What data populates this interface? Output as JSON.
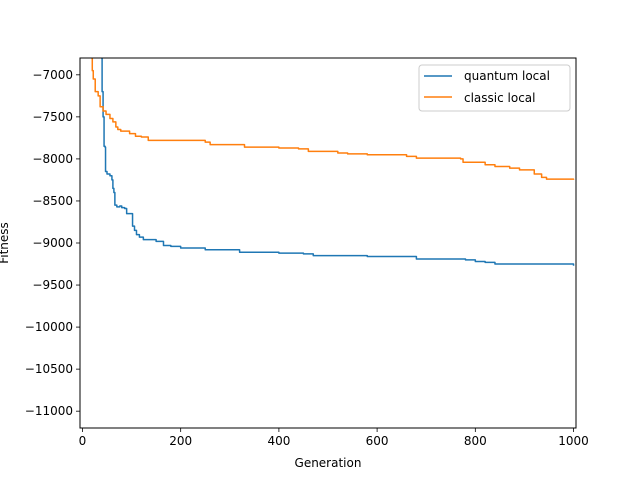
{
  "chart_data": {
    "type": "line",
    "title": "",
    "xlabel": "Generation",
    "ylabel": "Fitness",
    "xlim": [
      -5,
      1005
    ],
    "ylim": [
      -11200,
      -6800
    ],
    "xticks": [
      0,
      200,
      400,
      600,
      800,
      1000
    ],
    "yticks": [
      -7000,
      -7500,
      -8000,
      -8500,
      -9000,
      -9500,
      -10000,
      -10500,
      -11000
    ],
    "xtick_labels": [
      "0",
      "200",
      "400",
      "600",
      "800",
      "1000"
    ],
    "ytick_labels": [
      "−7000",
      "−7500",
      "−8000",
      "−8500",
      "−9000",
      "−9500",
      "−10000",
      "−10500",
      "−11000"
    ],
    "grid": false,
    "legend_position": "top-right",
    "series": [
      {
        "name": "quantum local",
        "color": "#1f77b4",
        "points": [
          [
            38,
            -6800
          ],
          [
            40,
            -7200
          ],
          [
            42,
            -7500
          ],
          [
            44,
            -7850
          ],
          [
            46,
            -7860
          ],
          [
            47,
            -8150
          ],
          [
            50,
            -8180
          ],
          [
            56,
            -8200
          ],
          [
            60,
            -8250
          ],
          [
            62,
            -8350
          ],
          [
            64,
            -8400
          ],
          [
            66,
            -8550
          ],
          [
            70,
            -8570
          ],
          [
            76,
            -8560
          ],
          [
            80,
            -8580
          ],
          [
            86,
            -8590
          ],
          [
            90,
            -8650
          ],
          [
            100,
            -8650
          ],
          [
            102,
            -8800
          ],
          [
            106,
            -8850
          ],
          [
            110,
            -8900
          ],
          [
            116,
            -8930
          ],
          [
            124,
            -8960
          ],
          [
            150,
            -8980
          ],
          [
            165,
            -9030
          ],
          [
            180,
            -9040
          ],
          [
            200,
            -9060
          ],
          [
            250,
            -9080
          ],
          [
            320,
            -9110
          ],
          [
            400,
            -9120
          ],
          [
            450,
            -9130
          ],
          [
            470,
            -9150
          ],
          [
            580,
            -9160
          ],
          [
            680,
            -9190
          ],
          [
            780,
            -9200
          ],
          [
            800,
            -9220
          ],
          [
            820,
            -9230
          ],
          [
            840,
            -9250
          ],
          [
            990,
            -9250
          ],
          [
            1000,
            -9270
          ]
        ]
      },
      {
        "name": "classic local",
        "color": "#ff7f0e",
        "points": [
          [
            18,
            -6800
          ],
          [
            20,
            -6950
          ],
          [
            22,
            -7050
          ],
          [
            26,
            -7200
          ],
          [
            32,
            -7250
          ],
          [
            36,
            -7380
          ],
          [
            42,
            -7430
          ],
          [
            48,
            -7470
          ],
          [
            56,
            -7520
          ],
          [
            62,
            -7560
          ],
          [
            68,
            -7620
          ],
          [
            72,
            -7650
          ],
          [
            78,
            -7670
          ],
          [
            96,
            -7700
          ],
          [
            108,
            -7730
          ],
          [
            120,
            -7740
          ],
          [
            134,
            -7780
          ],
          [
            250,
            -7800
          ],
          [
            260,
            -7830
          ],
          [
            330,
            -7860
          ],
          [
            400,
            -7870
          ],
          [
            440,
            -7880
          ],
          [
            460,
            -7910
          ],
          [
            520,
            -7930
          ],
          [
            540,
            -7940
          ],
          [
            580,
            -7950
          ],
          [
            660,
            -7970
          ],
          [
            680,
            -7990
          ],
          [
            770,
            -8000
          ],
          [
            775,
            -8040
          ],
          [
            820,
            -8070
          ],
          [
            840,
            -8090
          ],
          [
            870,
            -8110
          ],
          [
            890,
            -8130
          ],
          [
            920,
            -8180
          ],
          [
            935,
            -8220
          ],
          [
            945,
            -8240
          ],
          [
            1000,
            -8250
          ]
        ]
      }
    ]
  }
}
